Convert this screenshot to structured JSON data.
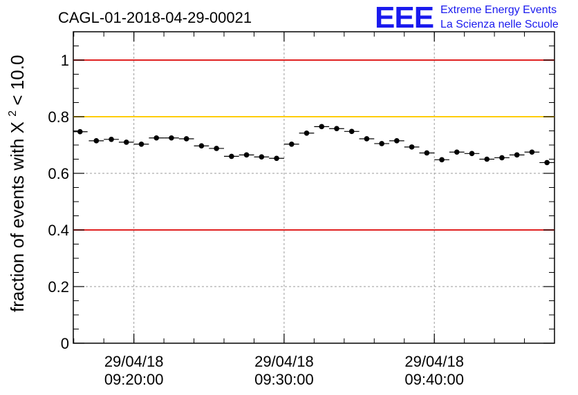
{
  "title": "CAGL-01-2018-04-29-00021",
  "logo": {
    "acronym": "EEE",
    "line1": "Extreme Energy Events",
    "line2": "La Scienza nelle Scuole",
    "color": "#1a1aee"
  },
  "chart_data": {
    "type": "scatter",
    "ylabel_prefix": "fraction of events with ",
    "ylabel_symbol": "X",
    "ylabel_sup": "2",
    "ylabel_suffix": " < 10.0",
    "xlabel": "",
    "ylim": [
      0,
      1.1
    ],
    "yticks": [
      0,
      0.2,
      0.4,
      0.6,
      0.8,
      1
    ],
    "ytick_labels": [
      "0",
      "0.2",
      "0.4",
      "0.6",
      "0.8",
      "1"
    ],
    "xlim": [
      "09:15:58",
      "09:48:00"
    ],
    "xticks": [
      {
        "date": "29/04/18",
        "time": "09:20:00"
      },
      {
        "date": "29/04/18",
        "time": "09:30:00"
      },
      {
        "date": "29/04/18",
        "time": "09:40:00"
      }
    ],
    "grid": true,
    "reference_lines": [
      {
        "y": 1.0,
        "color": "#e02020"
      },
      {
        "y": 0.8,
        "color": "#ffcc00"
      },
      {
        "y": 0.4,
        "color": "#e02020"
      }
    ],
    "marker_color": "#000000",
    "series": [
      {
        "points": [
          {
            "x": "09:16:25",
            "y": 0.747,
            "xerr_s": 30,
            "yerr": 0.008
          },
          {
            "x": "09:17:30",
            "y": 0.715,
            "xerr_s": 30,
            "yerr": 0.008
          },
          {
            "x": "09:18:30",
            "y": 0.72,
            "xerr_s": 30,
            "yerr": 0.008
          },
          {
            "x": "09:19:30",
            "y": 0.71,
            "xerr_s": 30,
            "yerr": 0.008
          },
          {
            "x": "09:20:30",
            "y": 0.703,
            "xerr_s": 30,
            "yerr": 0.008
          },
          {
            "x": "09:21:30",
            "y": 0.725,
            "xerr_s": 30,
            "yerr": 0.008
          },
          {
            "x": "09:22:30",
            "y": 0.725,
            "xerr_s": 30,
            "yerr": 0.008
          },
          {
            "x": "09:23:30",
            "y": 0.722,
            "xerr_s": 30,
            "yerr": 0.008
          },
          {
            "x": "09:24:30",
            "y": 0.697,
            "xerr_s": 30,
            "yerr": 0.008
          },
          {
            "x": "09:25:30",
            "y": 0.688,
            "xerr_s": 30,
            "yerr": 0.008
          },
          {
            "x": "09:26:30",
            "y": 0.66,
            "xerr_s": 30,
            "yerr": 0.008
          },
          {
            "x": "09:27:30",
            "y": 0.665,
            "xerr_s": 30,
            "yerr": 0.008
          },
          {
            "x": "09:28:30",
            "y": 0.658,
            "xerr_s": 30,
            "yerr": 0.008
          },
          {
            "x": "09:29:30",
            "y": 0.653,
            "xerr_s": 30,
            "yerr": 0.008
          },
          {
            "x": "09:30:30",
            "y": 0.703,
            "xerr_s": 30,
            "yerr": 0.008
          },
          {
            "x": "09:31:30",
            "y": 0.742,
            "xerr_s": 30,
            "yerr": 0.008
          },
          {
            "x": "09:32:30",
            "y": 0.765,
            "xerr_s": 30,
            "yerr": 0.008
          },
          {
            "x": "09:33:30",
            "y": 0.758,
            "xerr_s": 30,
            "yerr": 0.008
          },
          {
            "x": "09:34:30",
            "y": 0.748,
            "xerr_s": 30,
            "yerr": 0.008
          },
          {
            "x": "09:35:30",
            "y": 0.722,
            "xerr_s": 30,
            "yerr": 0.008
          },
          {
            "x": "09:36:30",
            "y": 0.705,
            "xerr_s": 30,
            "yerr": 0.008
          },
          {
            "x": "09:37:30",
            "y": 0.715,
            "xerr_s": 30,
            "yerr": 0.008
          },
          {
            "x": "09:38:30",
            "y": 0.693,
            "xerr_s": 30,
            "yerr": 0.008
          },
          {
            "x": "09:39:30",
            "y": 0.672,
            "xerr_s": 30,
            "yerr": 0.008
          },
          {
            "x": "09:40:30",
            "y": 0.648,
            "xerr_s": 30,
            "yerr": 0.008
          },
          {
            "x": "09:41:30",
            "y": 0.675,
            "xerr_s": 30,
            "yerr": 0.008
          },
          {
            "x": "09:42:30",
            "y": 0.67,
            "xerr_s": 30,
            "yerr": 0.008
          },
          {
            "x": "09:43:30",
            "y": 0.65,
            "xerr_s": 30,
            "yerr": 0.008
          },
          {
            "x": "09:44:30",
            "y": 0.655,
            "xerr_s": 30,
            "yerr": 0.008
          },
          {
            "x": "09:45:30",
            "y": 0.665,
            "xerr_s": 30,
            "yerr": 0.008
          },
          {
            "x": "09:46:30",
            "y": 0.675,
            "xerr_s": 30,
            "yerr": 0.008
          },
          {
            "x": "09:47:30",
            "y": 0.638,
            "xerr_s": 30,
            "yerr": 0.008
          }
        ]
      }
    ]
  }
}
